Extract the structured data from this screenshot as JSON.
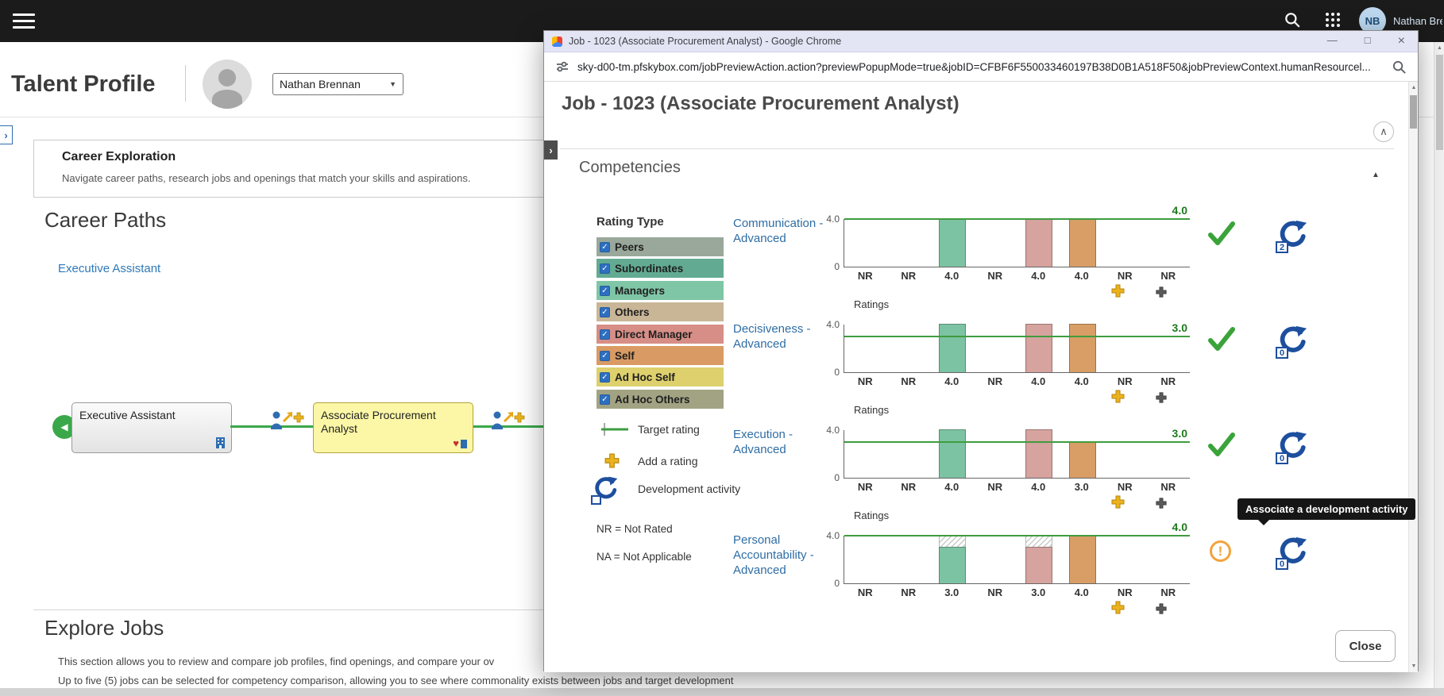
{
  "icons": {
    "check": "✓",
    "minimize": "—",
    "maximize": "□",
    "close": "×",
    "scroll_up": "▲",
    "scroll_down": "▼",
    "caret_down": "▼",
    "collapse_up": "∧",
    "section_collapse": "▲",
    "expander_right": "›",
    "warning_mark": "!",
    "heart": "♥"
  },
  "colors": {
    "link_blue": "#2e6da4",
    "target_line_green": "#3f9c3f",
    "target_value_green": "#1d7a1d",
    "check_green": "#3aa33a",
    "warning_orange": "#f2a33c",
    "dev_activity_blue": "#1d4f9e",
    "add_rating_gold": "#eab31e"
  },
  "topbar": {
    "user_initials": "NB",
    "user_name": "Nathan Bre"
  },
  "talent_page": {
    "title": "Talent Profile",
    "profile_dropdown": "Nathan Brennan",
    "career_exploration_title": "Career Exploration",
    "career_exploration_desc": "Navigate career paths, research jobs and openings that match your skills and aspirations.",
    "career_paths_title": "Career Paths",
    "career_link": "Executive Assistant",
    "node1": "Executive Assistant",
    "node2": "Associate Procurement Analyst",
    "explore_jobs_title": "Explore Jobs",
    "explore_line1": "This section allows you to review and compare job profiles, find openings, and compare your ov",
    "explore_line2": "Up to five (5) jobs can be selected for competency comparison, allowing you to see where commonality exists between jobs and target development"
  },
  "popup": {
    "window_title": "Job - 1023 (Associate Procurement Analyst) - Google Chrome",
    "url": "sky-d00-tm.pfskybox.com/jobPreviewAction.action?previewPopupMode=true&jobID=CFBF6F550033460197B38D0B1A518F50&jobPreviewContext.humanResourcel...",
    "page_title": "Job - 1023 (Associate Procurement Analyst)",
    "section_title": "Competencies",
    "rating_type_title": "Rating Type",
    "rating_types": [
      {
        "label": "Peers",
        "color": "#99a89b",
        "checked": true
      },
      {
        "label": "Subordinates",
        "color": "#62ab92",
        "checked": true
      },
      {
        "label": "Managers",
        "color": "#7fc6a6",
        "checked": true
      },
      {
        "label": "Others",
        "color": "#c9b697",
        "checked": true
      },
      {
        "label": "Direct Manager",
        "color": "#d78e86",
        "checked": true
      },
      {
        "label": "Self",
        "color": "#d99b63",
        "checked": true
      },
      {
        "label": "Ad Hoc Self",
        "color": "#ddd06d",
        "checked": true
      },
      {
        "label": "Ad Hoc Others",
        "color": "#a2a383",
        "checked": true
      }
    ],
    "legend": {
      "target": "Target rating",
      "add": "Add a rating",
      "dev": "Development activity",
      "nr": "NR = Not Rated",
      "na": "NA = Not Applicable"
    },
    "tooltip": "Associate a development activity",
    "close_label": "Close"
  },
  "chart_data": {
    "type": "bar",
    "ylim": [
      0,
      4
    ],
    "y_axis_top_label": "4.0",
    "y_axis_bottom_label": "0",
    "x_axis_label": "Ratings",
    "categories": [
      "Peers",
      "Subordinates",
      "Managers",
      "Others",
      "Direct Manager",
      "Self",
      "Ad Hoc Self",
      "Ad Hoc Others"
    ],
    "bar_colors": [
      "#99a89b",
      "#62ab92",
      "#7cc3a3",
      "#c9b697",
      "#d6a39e",
      "#d89e66",
      "#ddd06d",
      "#a2a383"
    ],
    "charts": [
      {
        "title": "Communication - Advanced",
        "target": 4.0,
        "target_label": "4.0",
        "values": [
          null,
          null,
          4.0,
          null,
          4.0,
          4.0,
          null,
          null
        ],
        "bar_labels": [
          "NR",
          "NR",
          "4.0",
          "NR",
          "4.0",
          "4.0",
          "NR",
          "NR"
        ],
        "status": "met",
        "dev_count": "2",
        "hatch_to_target": false
      },
      {
        "title": "Decisiveness - Advanced",
        "target": 3.0,
        "target_label": "3.0",
        "values": [
          null,
          null,
          4.0,
          null,
          4.0,
          4.0,
          null,
          null
        ],
        "bar_labels": [
          "NR",
          "NR",
          "4.0",
          "NR",
          "4.0",
          "4.0",
          "NR",
          "NR"
        ],
        "status": "met",
        "dev_count": "0",
        "hatch_to_target": false
      },
      {
        "title": "Execution - Advanced",
        "target": 3.0,
        "target_label": "3.0",
        "values": [
          null,
          null,
          4.0,
          null,
          4.0,
          3.0,
          null,
          null
        ],
        "bar_labels": [
          "NR",
          "NR",
          "4.0",
          "NR",
          "4.0",
          "3.0",
          "NR",
          "NR"
        ],
        "status": "met",
        "dev_count": "0",
        "hatch_to_target": false
      },
      {
        "title": "Personal Accountability - Advanced",
        "target": 4.0,
        "target_label": "4.0",
        "values": [
          null,
          null,
          3.0,
          null,
          3.0,
          4.0,
          null,
          null
        ],
        "bar_labels": [
          "NR",
          "NR",
          "3.0",
          "NR",
          "3.0",
          "4.0",
          "NR",
          "NR"
        ],
        "status": "warning",
        "dev_count": "0",
        "hatch_to_target": true
      }
    ]
  }
}
